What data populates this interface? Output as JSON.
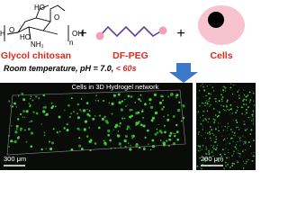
{
  "structure": {
    "labels": [
      "HO",
      "O",
      "O",
      "H",
      "HO",
      "OH",
      "NH₂",
      "n"
    ]
  },
  "reactants": [
    {
      "label": "Glycol chitosan"
    },
    {
      "label": "DF-PEG"
    },
    {
      "label": "Cells"
    }
  ],
  "plus_signs": [
    "+",
    "+"
  ],
  "condition": {
    "text": "Room temperature, pH = 7.0, ",
    "highlight": "< 60s"
  },
  "panels": [
    {
      "caption": "Cells in 3D Hydrogel network",
      "scale_bar": "300 μm"
    },
    {
      "scale_bar": "200 μm"
    }
  ]
}
